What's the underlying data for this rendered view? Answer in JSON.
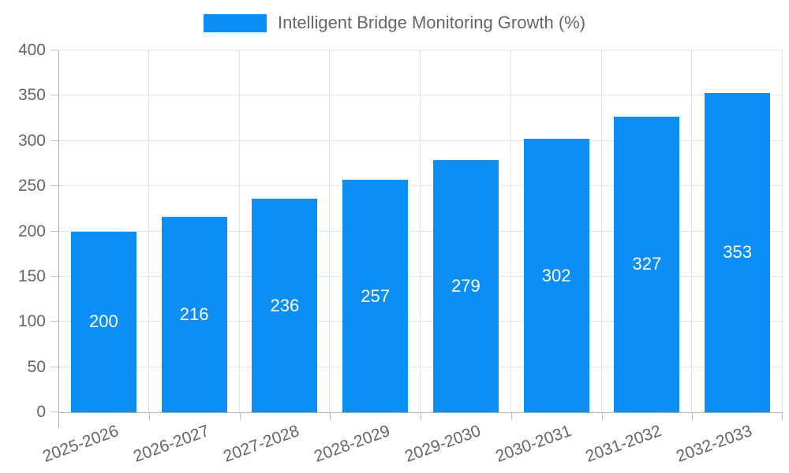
{
  "chart_data": {
    "type": "bar",
    "title": "Intelligent Bridge Monitoring Growth (%)",
    "categories": [
      "2025-2026",
      "2026-2027",
      "2027-2028",
      "2028-2029",
      "2029-2030",
      "2030-2031",
      "2031-2032",
      "2032-2033"
    ],
    "values": [
      200,
      216,
      236,
      257,
      279,
      302,
      327,
      353
    ],
    "xlabel": "",
    "ylabel": "",
    "ylim": [
      0,
      400
    ],
    "yticks": [
      0,
      50,
      100,
      150,
      200,
      250,
      300,
      350,
      400
    ],
    "grid": true,
    "legend_position": "top-center",
    "x_label_rotation_deg": -20,
    "colors": {
      "bar": "#0d8ef4",
      "bar_label": "#ffffff",
      "axis_line": "#b0b0b0",
      "gridline": "#e3e3e3",
      "tick": "#c0c0c0",
      "text": "#666666",
      "background": "#ffffff"
    }
  }
}
